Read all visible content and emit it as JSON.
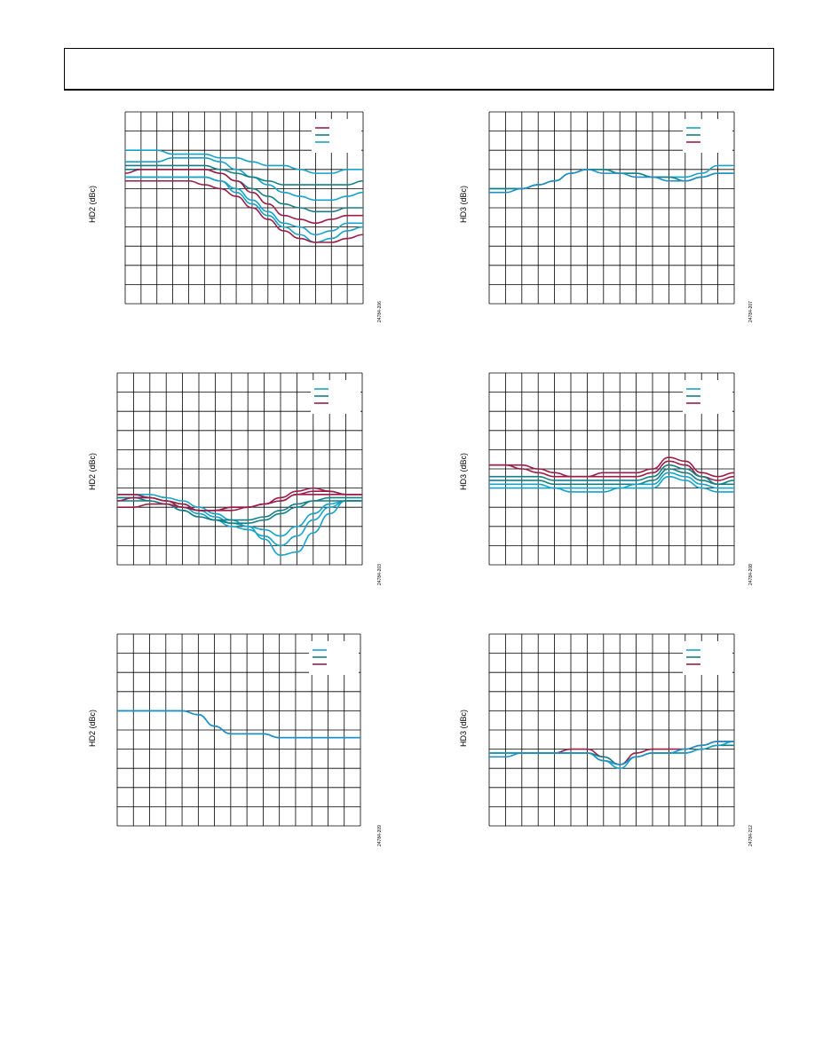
{
  "page": {
    "header_box": ""
  },
  "colors": {
    "teal": "#17a3c8",
    "dark_teal": "#157f86",
    "maroon": "#9b1d48",
    "blue": "#1f8fc4",
    "grid": "#000000"
  },
  "chart_data": [
    {
      "type": "line",
      "ylabel": "HD2 (dBc)",
      "fig_id": "24784-206",
      "legend": [
        {
          "color": "maroon",
          "name": ""
        },
        {
          "color": "dark_teal",
          "name": ""
        },
        {
          "color": "teal",
          "name": ""
        }
      ],
      "series": [
        {
          "color": "teal",
          "values": [
            50,
            50,
            50,
            51,
            51,
            51,
            52,
            52,
            53,
            54,
            54,
            55,
            56,
            56,
            55,
            55
          ]
        },
        {
          "color": "teal",
          "values": [
            53,
            53,
            53,
            52,
            52,
            52,
            53,
            55,
            57,
            59,
            61,
            62,
            63,
            63,
            62,
            61
          ]
        },
        {
          "color": "dark_teal",
          "values": [
            54,
            54,
            54,
            54,
            54,
            54,
            55,
            56,
            57,
            58,
            59,
            59,
            59,
            59,
            59,
            58
          ]
        },
        {
          "color": "dark_teal",
          "values": [
            55,
            55,
            55,
            55,
            55,
            55,
            56,
            58,
            60,
            62,
            64,
            65,
            66,
            66,
            65,
            65
          ]
        },
        {
          "color": "maroon",
          "values": [
            56,
            55,
            55,
            55,
            55,
            55,
            56,
            58,
            61,
            64,
            67,
            68,
            69,
            68,
            67,
            67
          ]
        },
        {
          "color": "teal",
          "values": [
            57,
            57,
            57,
            57,
            57,
            57,
            58,
            60,
            63,
            66,
            69,
            70,
            72,
            71,
            69,
            69
          ]
        },
        {
          "color": "teal",
          "values": [
            57,
            57,
            57,
            57,
            57,
            57,
            58,
            61,
            64,
            67,
            70,
            72,
            74,
            73,
            71,
            70
          ]
        },
        {
          "color": "maroon",
          "values": [
            58,
            58,
            58,
            58,
            58,
            59,
            60,
            62,
            65,
            68,
            71,
            73,
            74,
            74,
            73,
            72
          ]
        }
      ]
    },
    {
      "type": "line",
      "ylabel": "HD3 (dBc)",
      "fig_id": "24784-207",
      "legend": [
        {
          "color": "teal",
          "name": ""
        },
        {
          "color": "dark_teal",
          "name": ""
        },
        {
          "color": "maroon",
          "name": ""
        }
      ],
      "series": [
        {
          "color": "teal",
          "values": [
            60,
            60,
            60,
            59,
            58,
            56,
            55,
            55,
            56,
            56,
            57,
            57,
            57,
            56,
            54,
            54
          ]
        },
        {
          "color": "dark_teal",
          "values": [
            60,
            60,
            60,
            59,
            58,
            56,
            55,
            55,
            56,
            56,
            57,
            57,
            58,
            57,
            56,
            56
          ]
        },
        {
          "color": "blue",
          "values": [
            61,
            61,
            60,
            59,
            58,
            56,
            55,
            56,
            56,
            57,
            57,
            58,
            58,
            57,
            56,
            56
          ]
        }
      ]
    },
    {
      "type": "line",
      "ylabel": "HD2 (dBc)",
      "fig_id": "24784-203",
      "legend": [
        {
          "color": "teal",
          "name": ""
        },
        {
          "color": "dark_teal",
          "name": ""
        },
        {
          "color": "maroon",
          "name": ""
        }
      ],
      "series": [
        {
          "color": "teal",
          "values": [
            78,
            78,
            78,
            79,
            80,
            82,
            84,
            86,
            88,
            92,
            97,
            96,
            90,
            84,
            80,
            80
          ]
        },
        {
          "color": "teal",
          "values": [
            79,
            79,
            79,
            80,
            82,
            84,
            86,
            88,
            89,
            91,
            94,
            91,
            86,
            82,
            80,
            80
          ]
        },
        {
          "color": "teal",
          "values": [
            78,
            78,
            79,
            80,
            81,
            83,
            85,
            87,
            88,
            89,
            91,
            88,
            84,
            81,
            80,
            80
          ]
        },
        {
          "color": "dark_teal",
          "values": [
            79,
            79,
            80,
            81,
            83,
            85,
            86,
            87,
            87,
            86,
            84,
            82,
            80,
            80,
            80,
            80
          ]
        },
        {
          "color": "dark_teal",
          "values": [
            80,
            80,
            80,
            81,
            83,
            85,
            86,
            86,
            86,
            85,
            83,
            81,
            80,
            79,
            79,
            79
          ]
        },
        {
          "color": "maroon",
          "values": [
            80,
            79,
            79,
            80,
            81,
            83,
            83,
            82,
            82,
            81,
            79,
            77,
            76,
            77,
            78,
            78
          ]
        },
        {
          "color": "maroon",
          "values": [
            82,
            82,
            81,
            81,
            82,
            83,
            83,
            82,
            82,
            81,
            80,
            78,
            77,
            77,
            78,
            78
          ]
        },
        {
          "color": "maroon",
          "values": [
            78,
            78,
            79,
            80,
            82,
            83,
            83,
            83,
            82,
            81,
            80,
            78,
            78,
            78,
            78,
            78
          ]
        }
      ]
    },
    {
      "type": "line",
      "ylabel": "HD3 (dBc)",
      "fig_id": "24784-208",
      "legend": [
        {
          "color": "teal",
          "name": ""
        },
        {
          "color": "dark_teal",
          "name": ""
        },
        {
          "color": "maroon",
          "name": ""
        }
      ],
      "series": [
        {
          "color": "maroon",
          "values": [
            64,
            64,
            65,
            66,
            67,
            67,
            67,
            67,
            67,
            67,
            66,
            63,
            64,
            67,
            68,
            67
          ]
        },
        {
          "color": "maroon",
          "values": [
            64,
            64,
            64,
            65,
            66,
            67,
            67,
            66,
            66,
            66,
            65,
            62,
            63,
            66,
            67,
            66
          ]
        },
        {
          "color": "dark_teal",
          "values": [
            67,
            67,
            67,
            67,
            68,
            68,
            68,
            68,
            68,
            68,
            67,
            64,
            65,
            67,
            69,
            68
          ]
        },
        {
          "color": "dark_teal",
          "values": [
            68,
            68,
            68,
            68,
            69,
            69,
            69,
            69,
            69,
            69,
            68,
            65,
            66,
            68,
            69,
            69
          ]
        },
        {
          "color": "teal",
          "values": [
            69,
            69,
            69,
            69,
            70,
            70,
            70,
            70,
            70,
            69,
            69,
            66,
            67,
            69,
            70,
            70
          ]
        },
        {
          "color": "teal",
          "values": [
            70,
            70,
            70,
            70,
            70,
            71,
            71,
            71,
            70,
            70,
            70,
            67,
            68,
            70,
            71,
            71
          ]
        }
      ]
    },
    {
      "type": "line",
      "ylabel": "HD2 (dBc)",
      "fig_id": "24784-209",
      "legend": [
        {
          "color": "teal",
          "name": ""
        },
        {
          "color": "dark_teal",
          "name": ""
        },
        {
          "color": "maroon",
          "name": ""
        }
      ],
      "series": [
        {
          "color": "teal",
          "values": [
            60,
            60,
            60,
            60,
            60,
            61,
            64,
            66,
            66,
            66,
            67,
            67,
            67,
            67,
            67,
            67
          ]
        },
        {
          "color": "blue",
          "values": [
            60,
            60,
            60,
            60,
            60,
            61,
            64,
            66,
            66,
            66,
            67,
            67,
            67,
            67,
            67,
            67
          ]
        }
      ]
    },
    {
      "type": "line",
      "ylabel": "HD3 (dBc)",
      "fig_id": "24784-212",
      "legend": [
        {
          "color": "teal",
          "name": ""
        },
        {
          "color": "dark_teal",
          "name": ""
        },
        {
          "color": "maroon",
          "name": ""
        }
      ],
      "series": [
        {
          "color": "maroon",
          "values": [
            71,
            71,
            71,
            71,
            71,
            70,
            70,
            72,
            74,
            71,
            70,
            70,
            70,
            69,
            68,
            68
          ]
        },
        {
          "color": "dark_teal",
          "values": [
            71,
            71,
            71,
            71,
            71,
            71,
            71,
            72,
            74,
            72,
            71,
            71,
            71,
            70,
            69,
            69
          ]
        },
        {
          "color": "teal",
          "values": [
            71,
            71,
            71,
            71,
            71,
            71,
            71,
            73,
            75,
            72,
            71,
            71,
            71,
            70,
            69,
            68
          ]
        },
        {
          "color": "blue",
          "values": [
            72,
            72,
            71,
            71,
            71,
            71,
            71,
            73,
            74,
            72,
            71,
            71,
            70,
            69,
            68,
            68
          ]
        }
      ]
    }
  ]
}
